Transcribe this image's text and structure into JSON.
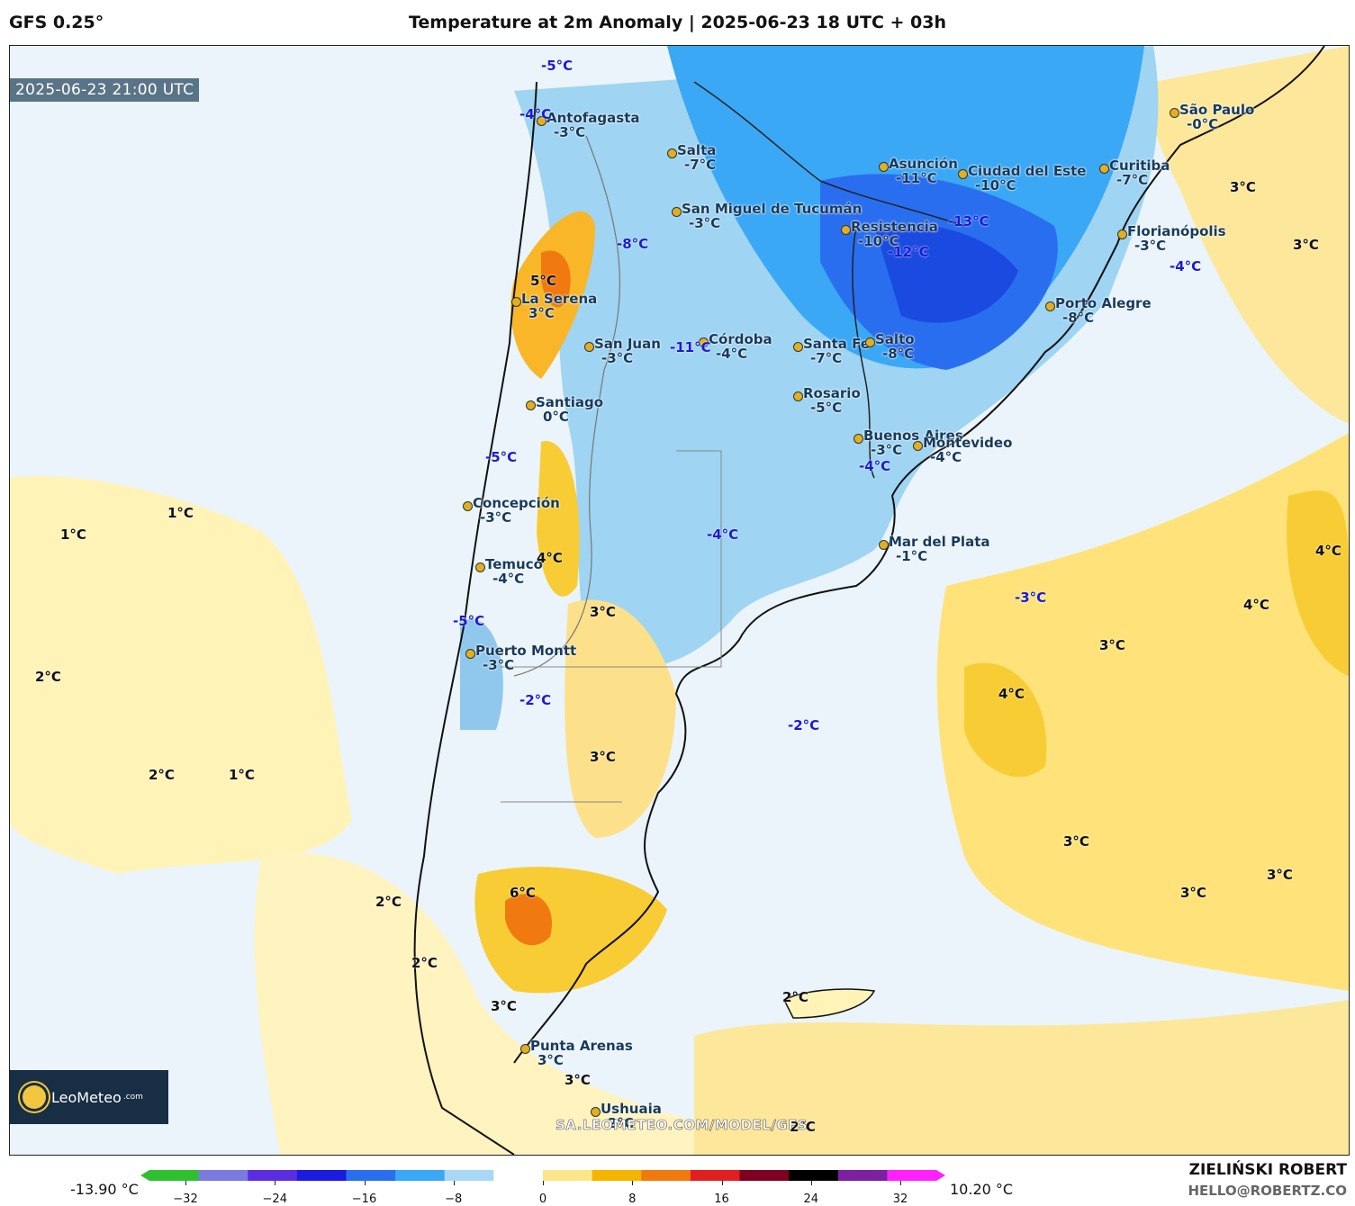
{
  "header": {
    "model": "GFS 0.25°",
    "title": "Temperature at 2m Anomaly | 2025-06-23 18 UTC + 03h"
  },
  "map": {
    "valid_time": "2025-06-23 21:00 UTC",
    "watermark": "SA.LEOMETEO.COM/MODEL/GFS",
    "logo_text": "LeoMeteo",
    "logo_suffix": ".com",
    "cities": [
      {
        "name": "Antofagasta",
        "value": "-3°C"
      },
      {
        "name": "Salta",
        "value": "-7°C"
      },
      {
        "name": "San Miguel de Tucumán",
        "value": "-3°C"
      },
      {
        "name": "Asunción",
        "value": "-11°C"
      },
      {
        "name": "Ciudad del Este",
        "value": "-10°C"
      },
      {
        "name": "Curitiba",
        "value": "-7°C"
      },
      {
        "name": "São Paulo",
        "value": "-0°C"
      },
      {
        "name": "Florianópolis",
        "value": "-3°C"
      },
      {
        "name": "Resistencia",
        "value": "-10°C"
      },
      {
        "name": "La Serena",
        "value": "3°C"
      },
      {
        "name": "San Juan",
        "value": "-3°C"
      },
      {
        "name": "Córdoba",
        "value": "-4°C"
      },
      {
        "name": "Santa Fe",
        "value": "-7°C"
      },
      {
        "name": "Salto",
        "value": "-8°C"
      },
      {
        "name": "Porto Alegre",
        "value": "-8°C"
      },
      {
        "name": "Rosario",
        "value": "-5°C"
      },
      {
        "name": "Santiago",
        "value": "0°C"
      },
      {
        "name": "Buenos Aires",
        "value": "-3°C"
      },
      {
        "name": "Montevideo",
        "value": "-4°C"
      },
      {
        "name": "Concepción",
        "value": "-3°C"
      },
      {
        "name": "Mar del Plata",
        "value": "-1°C"
      },
      {
        "name": "Temuco",
        "value": "-4°C"
      },
      {
        "name": "Puerto Montt",
        "value": "-3°C"
      },
      {
        "name": "Punta Arenas",
        "value": "3°C"
      },
      {
        "name": "Ushuaia",
        "value": "2°C"
      }
    ],
    "contour_labels": [
      {
        "text": "-5°C",
        "kind": "cold"
      },
      {
        "text": "-4°C",
        "kind": "cold"
      },
      {
        "text": "-8°C",
        "kind": "cold"
      },
      {
        "text": "-11°C",
        "kind": "cold"
      },
      {
        "text": "-13°C",
        "kind": "cold"
      },
      {
        "text": "-12°C",
        "kind": "cold"
      },
      {
        "text": "-4°C",
        "kind": "cold"
      },
      {
        "text": "-5°C",
        "kind": "cold"
      },
      {
        "text": "-4°C",
        "kind": "cold"
      },
      {
        "text": "-4°C",
        "kind": "cold"
      },
      {
        "text": "-3°C",
        "kind": "cold"
      },
      {
        "text": "-5°C",
        "kind": "cold"
      },
      {
        "text": "-2°C",
        "kind": "cold"
      },
      {
        "text": "-2°C",
        "kind": "cold"
      },
      {
        "text": "5°C",
        "kind": "warm"
      },
      {
        "text": "3°C",
        "kind": "warm"
      },
      {
        "text": "3°C",
        "kind": "warm"
      },
      {
        "text": "1°C",
        "kind": "warm"
      },
      {
        "text": "1°C",
        "kind": "warm"
      },
      {
        "text": "4°C",
        "kind": "warm"
      },
      {
        "text": "3°C",
        "kind": "warm"
      },
      {
        "text": "4°C",
        "kind": "warm"
      },
      {
        "text": "4°C",
        "kind": "warm"
      },
      {
        "text": "3°C",
        "kind": "warm"
      },
      {
        "text": "4°C",
        "kind": "warm"
      },
      {
        "text": "2°C",
        "kind": "warm"
      },
      {
        "text": "3°C",
        "kind": "warm"
      },
      {
        "text": "2°C",
        "kind": "warm"
      },
      {
        "text": "1°C",
        "kind": "warm"
      },
      {
        "text": "3°C",
        "kind": "warm"
      },
      {
        "text": "3°C",
        "kind": "warm"
      },
      {
        "text": "3°C",
        "kind": "warm"
      },
      {
        "text": "2°C",
        "kind": "warm"
      },
      {
        "text": "6°C",
        "kind": "warm"
      },
      {
        "text": "2°C",
        "kind": "warm"
      },
      {
        "text": "3°C",
        "kind": "warm"
      },
      {
        "text": "2°C",
        "kind": "warm"
      },
      {
        "text": "3°C",
        "kind": "warm"
      },
      {
        "text": "2°C",
        "kind": "warm"
      }
    ]
  },
  "colorbar": {
    "min_label": "-13.90 °C",
    "max_label": "10.20 °C",
    "ticks": [
      "−32",
      "−24",
      "−16",
      "−8",
      "0",
      "8",
      "16",
      "24",
      "32"
    ],
    "colors": [
      "#2fc02f",
      "#7a7ae0",
      "#5a2ee0",
      "#1a1ae0",
      "#2a6ef0",
      "#3aa8f5",
      "#a8d8f5",
      "#ffffff",
      "#fde68a",
      "#f5b400",
      "#f07a10",
      "#e02020",
      "#800020",
      "#000000",
      "#7a20a0",
      "#ff20ff"
    ]
  },
  "footer": {
    "author": "ZIELIŃSKI ROBERT",
    "email": "HELLO@ROBERTZ.CO"
  }
}
